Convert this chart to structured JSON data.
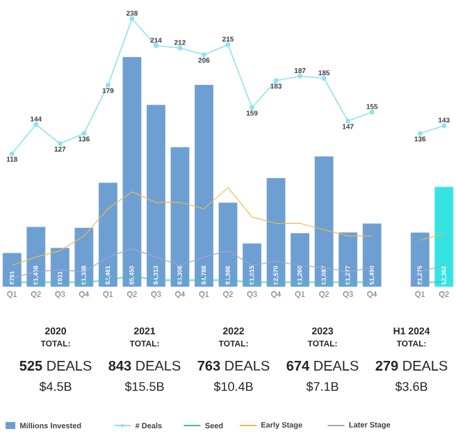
{
  "chart_data": {
    "type": "bar",
    "categories": [
      "Q1",
      "Q2",
      "Q3",
      "Q4",
      "Q1",
      "Q2",
      "Q3",
      "Q4",
      "Q1",
      "Q2",
      "Q3",
      "Q4",
      "Q1",
      "Q2",
      "Q3",
      "Q4",
      null,
      "Q1",
      "Q2"
    ],
    "tick_labels": "x",
    "legend": "bottom",
    "series": [
      {
        "name": "Millions Invested",
        "color": "#6e9fd2",
        "colors": [
          "#6e9fd2",
          "#6e9fd2",
          "#6e9fd2",
          "#6e9fd2",
          "#6e9fd2",
          "#6e9fd2",
          "#6e9fd2",
          "#6e9fd2",
          "#6e9fd2",
          "#6e9fd2",
          "#6e9fd2",
          "#6e9fd2",
          "#6e9fd2",
          "#6e9fd2",
          "#6e9fd2",
          "#6e9fd2",
          null,
          "#6e9fd2",
          "#36e3e3"
        ],
        "values": [
          791,
          1408,
          911,
          1388,
          2461,
          5450,
          4313,
          3306,
          4788,
          1986,
          1015,
          2570,
          1260,
          3087,
          1277,
          1490,
          null,
          1275,
          2362
        ],
        "value_labels": [
          "$791",
          "$1,408",
          "$911",
          "$1,388",
          "$2,461",
          "$5,450",
          "$4,313",
          "$3,306",
          "$4,788",
          "$1,986",
          "$1,015",
          "$2,570",
          "$1,260",
          "$3,087",
          "$1,277",
          "$1,490",
          null,
          "$1,275",
          "$2,362"
        ]
      },
      {
        "name": "# Deals",
        "type": "line",
        "axis": "y2",
        "color": "#8fe3ee",
        "marker": "circle",
        "values": [
          118,
          144,
          127,
          136,
          179,
          238,
          214,
          212,
          206,
          215,
          159,
          183,
          187,
          185,
          147,
          155,
          null,
          136,
          143
        ],
        "value_labels": [
          "118",
          "144",
          "127",
          "136",
          "179",
          "238",
          "214",
          "212",
          "206",
          "215",
          "159",
          "183",
          "187",
          "185",
          "147",
          "155",
          null,
          "136",
          "143"
        ]
      },
      {
        "name": "Seed",
        "type": "line",
        "color": "#3cc0a4",
        "values": [
          100,
          100,
          100,
          100,
          150,
          250,
          150,
          150,
          150,
          150,
          100,
          100,
          100,
          100,
          100,
          100,
          null,
          100,
          100
        ]
      },
      {
        "name": "Early Stage",
        "type": "line",
        "color": "#e8bc4c",
        "values": [
          500,
          700,
          850,
          1200,
          1850,
          2250,
          2000,
          2000,
          1850,
          2350,
          1650,
          1500,
          1500,
          1350,
          1200,
          1200,
          null,
          1100,
          1250
        ]
      },
      {
        "name": "Later Stage",
        "type": "line",
        "color": "#a4a4c4",
        "values": [
          200,
          350,
          400,
          350,
          700,
          900,
          700,
          500,
          700,
          850,
          500,
          600,
          500,
          450,
          350,
          450,
          null,
          350,
          500
        ]
      }
    ],
    "annotations": [
      "2020",
      "TOTAL:",
      "**525** DEALS",
      "$4.5B",
      "2021",
      "TOTAL:",
      "**843** DEALS",
      "$15.5B",
      "2022",
      "TOTAL:",
      "**763** DEALS",
      "$10.4B",
      "2023",
      "TOTAL:",
      "**674** DEALS",
      "$7.1B",
      "H1 2024",
      "TOTAL:",
      "**279** DEALS",
      "$3.6B"
    ]
  }
}
